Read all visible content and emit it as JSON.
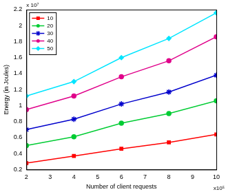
{
  "chart_data": {
    "type": "line",
    "x_label": "Number of client requests",
    "y_label": "Energy (in Joules)",
    "annotations": [
      {
        "text": "x 10⁷",
        "axis": "y"
      },
      {
        "text": "x10⁵",
        "axis": "x"
      }
    ],
    "x": [
      2,
      4,
      6,
      8,
      10
    ],
    "series": [
      {
        "name": "10",
        "color": "#ff0000",
        "marker": "square",
        "values": [
          0.28,
          0.37,
          0.46,
          0.54,
          0.64
        ]
      },
      {
        "name": "20",
        "color": "#00cc33",
        "marker": "circle",
        "values": [
          0.5,
          0.61,
          0.78,
          0.9,
          1.06
        ]
      },
      {
        "name": "30",
        "color": "#0000cc",
        "marker": "star",
        "values": [
          0.7,
          0.83,
          1.02,
          1.17,
          1.38
        ]
      },
      {
        "name": "40",
        "color": "#e0008a",
        "marker": "circle",
        "values": [
          0.95,
          1.12,
          1.36,
          1.56,
          1.86
        ]
      },
      {
        "name": "50",
        "color": "#00e5ff",
        "marker": "diamond",
        "values": [
          1.12,
          1.3,
          1.6,
          1.84,
          2.16
        ]
      }
    ],
    "xlim": [
      2,
      10
    ],
    "xticks": [
      2,
      3,
      4,
      5,
      6,
      7,
      8,
      9,
      10
    ],
    "ylim": [
      0.2,
      2.2
    ],
    "yticks": [
      0.2,
      0.4,
      0.6,
      0.8,
      1,
      1.2,
      1.4,
      1.6,
      1.8,
      2,
      2.2
    ],
    "grid": false,
    "legend": "upper left"
  }
}
